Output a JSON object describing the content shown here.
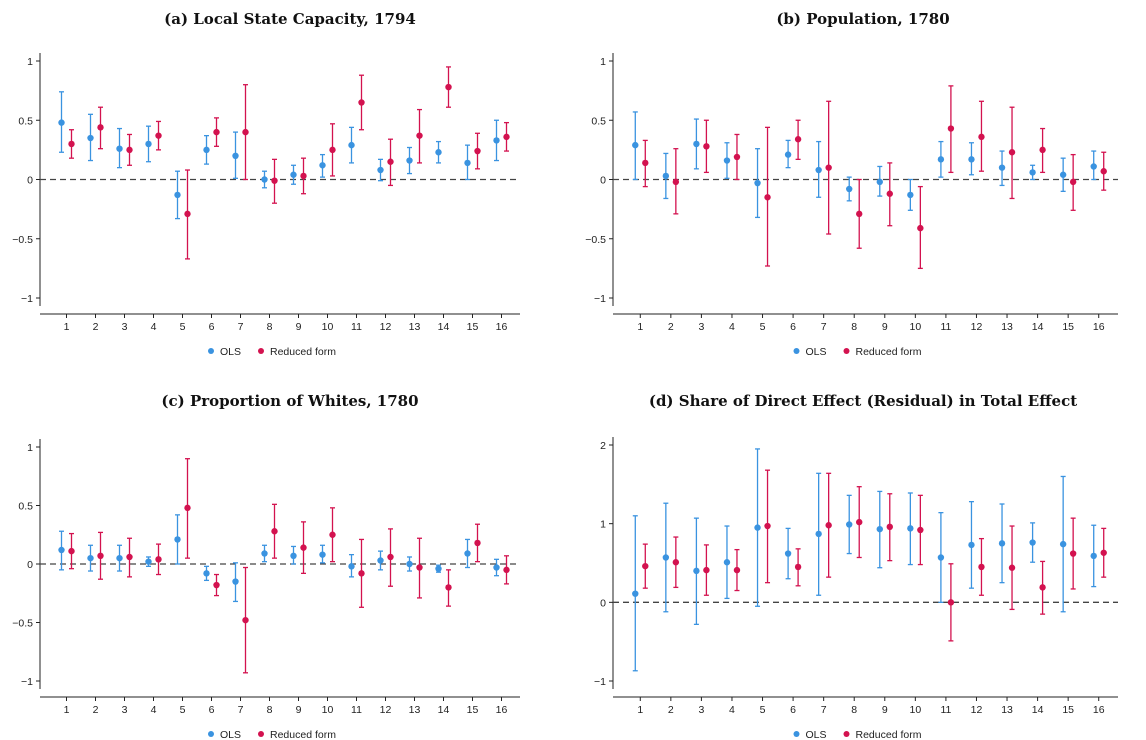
{
  "colors": {
    "ols": "#3a93e0",
    "reduced": "#d3124f",
    "axis": "#222222",
    "zero": "#444444"
  },
  "legend": {
    "ols": "OLS",
    "reduced": "Reduced form"
  },
  "chart_data": [
    {
      "type": "scatter",
      "title": "(a) Local State Capacity, 1794",
      "categories": [
        1,
        2,
        3,
        4,
        5,
        6,
        7,
        8,
        9,
        10,
        11,
        12,
        13,
        14,
        15,
        16
      ],
      "ylim": [
        -1.1,
        1.1
      ],
      "yticks": [
        -1,
        -0.5,
        0,
        0.5,
        1
      ],
      "ytick_labels": [
        "−1",
        "−0.5",
        "0",
        "0.5",
        "1"
      ],
      "zero_line": true,
      "legend_position": "bottom-center",
      "series": [
        {
          "name": "OLS",
          "values": [
            0.48,
            0.35,
            0.26,
            0.3,
            -0.13,
            0.25,
            0.2,
            0.0,
            0.04,
            0.12,
            0.29,
            0.08,
            0.16,
            0.23,
            0.14,
            0.33
          ],
          "ci_low": [
            0.23,
            0.16,
            0.1,
            0.15,
            -0.33,
            0.13,
            0.01,
            -0.07,
            -0.04,
            0.02,
            0.14,
            -0.01,
            0.05,
            0.14,
            0.0,
            0.16
          ],
          "ci_high": [
            0.74,
            0.55,
            0.43,
            0.45,
            0.07,
            0.37,
            0.4,
            0.07,
            0.12,
            0.21,
            0.44,
            0.17,
            0.27,
            0.32,
            0.29,
            0.5
          ]
        },
        {
          "name": "Reduced form",
          "values": [
            0.3,
            0.44,
            0.25,
            0.37,
            -0.29,
            0.4,
            0.4,
            -0.01,
            0.03,
            0.25,
            0.65,
            0.15,
            0.37,
            0.78,
            0.24,
            0.36
          ],
          "ci_low": [
            0.18,
            0.26,
            0.12,
            0.25,
            -0.67,
            0.28,
            0.0,
            -0.2,
            -0.12,
            0.03,
            0.42,
            -0.05,
            0.14,
            0.61,
            0.09,
            0.24
          ],
          "ci_high": [
            0.42,
            0.61,
            0.38,
            0.49,
            0.08,
            0.52,
            0.8,
            0.17,
            0.18,
            0.47,
            0.88,
            0.34,
            0.59,
            0.95,
            0.39,
            0.48
          ]
        }
      ]
    },
    {
      "type": "scatter",
      "title": "(b) Population, 1780",
      "categories": [
        1,
        2,
        3,
        4,
        5,
        6,
        7,
        8,
        9,
        10,
        11,
        12,
        13,
        14,
        15,
        16
      ],
      "ylim": [
        -1.1,
        1.1
      ],
      "yticks": [
        -1,
        -0.5,
        0,
        0.5,
        1
      ],
      "ytick_labels": [
        "−1",
        "−0.5",
        "0",
        "0.5",
        "1"
      ],
      "zero_line": true,
      "legend_position": "bottom-center",
      "series": [
        {
          "name": "OLS",
          "values": [
            0.29,
            0.03,
            0.3,
            0.16,
            -0.03,
            0.21,
            0.08,
            -0.08,
            -0.02,
            -0.13,
            0.17,
            0.17,
            0.1,
            0.06,
            0.04,
            0.11
          ],
          "ci_low": [
            0.0,
            -0.16,
            0.09,
            0.01,
            -0.32,
            0.1,
            -0.15,
            -0.18,
            -0.14,
            -0.26,
            0.02,
            0.04,
            -0.05,
            0.0,
            -0.1,
            0.0
          ],
          "ci_high": [
            0.57,
            0.22,
            0.51,
            0.31,
            0.26,
            0.33,
            0.32,
            0.02,
            0.11,
            0.0,
            0.32,
            0.31,
            0.24,
            0.12,
            0.18,
            0.24
          ]
        },
        {
          "name": "Reduced form",
          "values": [
            0.14,
            -0.02,
            0.28,
            0.19,
            -0.15,
            0.34,
            0.1,
            -0.29,
            -0.12,
            -0.41,
            0.43,
            0.36,
            0.23,
            0.25,
            -0.02,
            0.07
          ],
          "ci_low": [
            -0.06,
            -0.29,
            0.06,
            0.0,
            -0.73,
            0.17,
            -0.46,
            -0.58,
            -0.39,
            -0.75,
            0.06,
            0.07,
            -0.16,
            0.06,
            -0.26,
            -0.09
          ],
          "ci_high": [
            0.33,
            0.26,
            0.5,
            0.38,
            0.44,
            0.5,
            0.66,
            0.0,
            0.14,
            -0.06,
            0.79,
            0.66,
            0.61,
            0.43,
            0.21,
            0.23
          ]
        }
      ]
    },
    {
      "type": "scatter",
      "title": "(c) Proportion of Whites, 1780",
      "categories": [
        1,
        2,
        3,
        4,
        5,
        6,
        7,
        8,
        9,
        10,
        11,
        12,
        13,
        14,
        15,
        16
      ],
      "ylim": [
        -1.1,
        1.1
      ],
      "yticks": [
        -1,
        -0.5,
        0,
        0.5,
        1
      ],
      "ytick_labels": [
        "−1",
        "−0.5",
        "0",
        "0.5",
        "1"
      ],
      "zero_line": true,
      "legend_position": "bottom-center",
      "series": [
        {
          "name": "OLS",
          "values": [
            0.12,
            0.05,
            0.05,
            0.02,
            0.21,
            -0.08,
            -0.15,
            0.09,
            0.07,
            0.08,
            -0.02,
            0.03,
            0.0,
            -0.04,
            0.09,
            -0.03
          ],
          "ci_low": [
            -0.05,
            -0.06,
            -0.06,
            -0.02,
            0.0,
            -0.14,
            -0.32,
            0.02,
            0.0,
            0.01,
            -0.11,
            -0.05,
            -0.06,
            -0.07,
            -0.03,
            -0.1
          ],
          "ci_high": [
            0.28,
            0.16,
            0.16,
            0.06,
            0.42,
            -0.02,
            0.01,
            0.16,
            0.15,
            0.16,
            0.08,
            0.11,
            0.06,
            -0.01,
            0.21,
            0.04
          ]
        },
        {
          "name": "Reduced form",
          "values": [
            0.11,
            0.07,
            0.06,
            0.04,
            0.48,
            -0.18,
            -0.48,
            0.28,
            0.14,
            0.25,
            -0.08,
            0.06,
            -0.03,
            -0.2,
            0.18,
            -0.05
          ],
          "ci_low": [
            -0.04,
            -0.13,
            -0.11,
            -0.09,
            0.05,
            -0.27,
            -0.93,
            0.05,
            -0.08,
            0.02,
            -0.37,
            -0.19,
            -0.29,
            -0.36,
            0.02,
            -0.17
          ],
          "ci_high": [
            0.26,
            0.27,
            0.22,
            0.17,
            0.9,
            -0.09,
            -0.03,
            0.51,
            0.36,
            0.48,
            0.21,
            0.3,
            0.22,
            -0.05,
            0.34,
            0.07
          ]
        }
      ]
    },
    {
      "type": "scatter",
      "title": "(d) Share of Direct Effect (Residual) in Total Effect",
      "categories": [
        1,
        2,
        3,
        4,
        5,
        6,
        7,
        8,
        9,
        10,
        11,
        12,
        13,
        14,
        15,
        16
      ],
      "ylim": [
        -1.1,
        2.1
      ],
      "yticks": [
        -1,
        0,
        1,
        2
      ],
      "ytick_labels": [
        "−1",
        "0",
        "1",
        "2"
      ],
      "zero_line": true,
      "legend_position": "bottom-center",
      "series": [
        {
          "name": "OLS",
          "values": [
            0.11,
            0.57,
            0.4,
            0.51,
            0.95,
            0.62,
            0.87,
            0.99,
            0.93,
            0.94,
            0.57,
            0.73,
            0.75,
            0.76,
            0.74,
            0.59
          ],
          "ci_low": [
            -0.87,
            -0.12,
            -0.28,
            0.05,
            -0.05,
            0.3,
            0.09,
            0.62,
            0.44,
            0.48,
            0.0,
            0.18,
            0.25,
            0.51,
            -0.12,
            0.2
          ],
          "ci_high": [
            1.1,
            1.26,
            1.07,
            0.97,
            1.95,
            0.94,
            1.64,
            1.36,
            1.41,
            1.39,
            1.14,
            1.28,
            1.25,
            1.01,
            1.6,
            0.98
          ]
        },
        {
          "name": "Reduced form",
          "values": [
            0.46,
            0.51,
            0.41,
            0.41,
            0.97,
            0.45,
            0.98,
            1.02,
            0.96,
            0.92,
            0.0,
            0.45,
            0.44,
            0.19,
            0.62,
            0.63
          ],
          "ci_low": [
            0.18,
            0.19,
            0.09,
            0.15,
            0.25,
            0.21,
            0.32,
            0.57,
            0.53,
            0.48,
            -0.49,
            0.09,
            -0.09,
            -0.15,
            0.17,
            0.32
          ],
          "ci_high": [
            0.74,
            0.83,
            0.73,
            0.67,
            1.68,
            0.68,
            1.64,
            1.47,
            1.38,
            1.36,
            0.49,
            0.81,
            0.97,
            0.52,
            1.07,
            0.94
          ]
        }
      ]
    }
  ]
}
